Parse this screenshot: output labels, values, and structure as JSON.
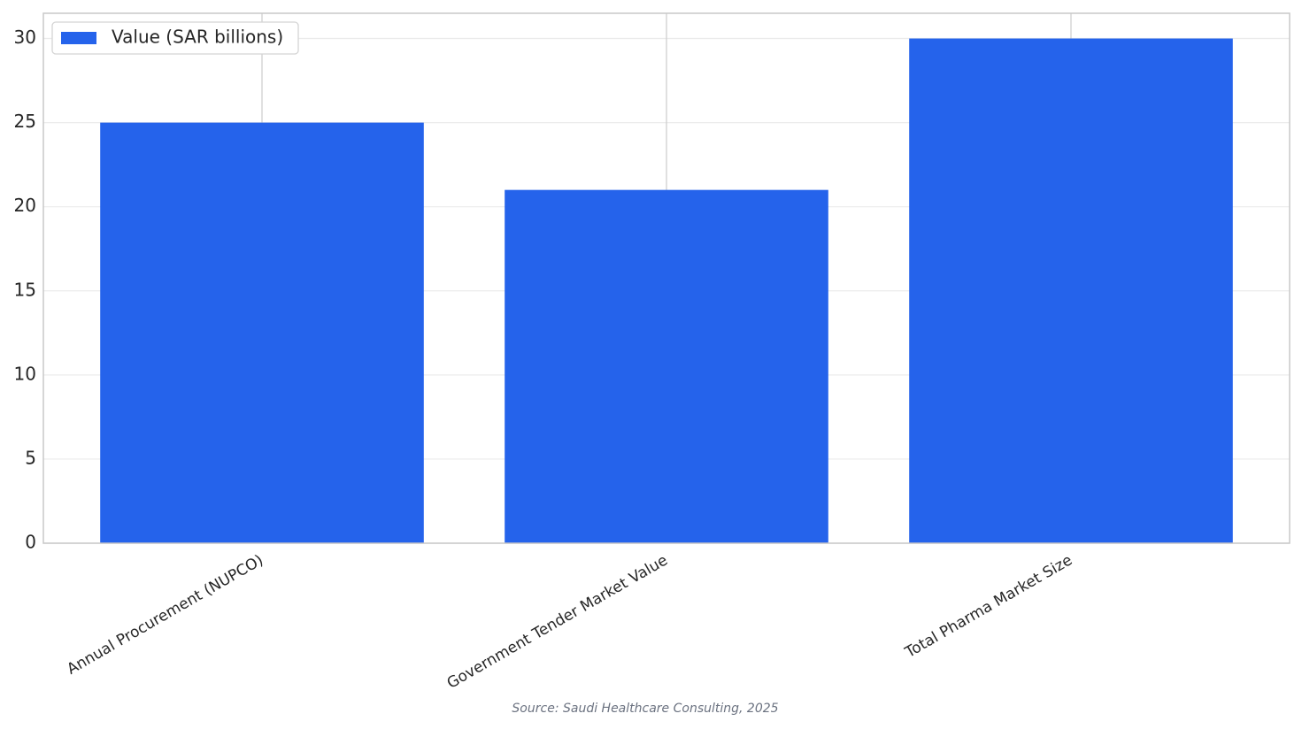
{
  "chart_data": {
    "type": "bar",
    "categories": [
      "Annual Procurement (NUPCO)",
      "Government Tender Market Value",
      "Total Pharma Market Size"
    ],
    "series": [
      {
        "name": "Value (SAR billions)",
        "color": "#2563eb",
        "values": [
          25,
          21,
          30
        ]
      }
    ],
    "ylim": [
      0,
      31.5
    ],
    "yticks": [
      0,
      5,
      10,
      15,
      20,
      25,
      30
    ],
    "grid": true,
    "legend": "upper left",
    "source": "Source: Saudi Healthcare Consulting, 2025"
  }
}
